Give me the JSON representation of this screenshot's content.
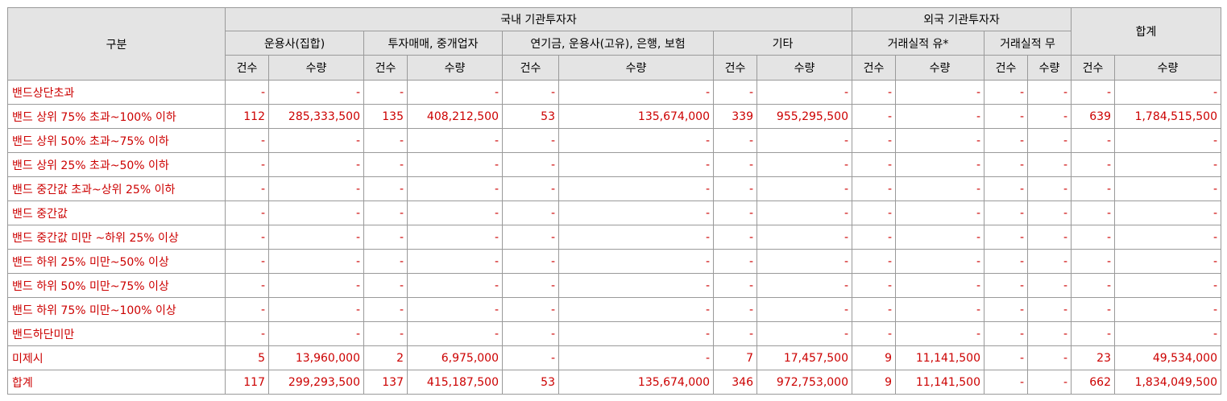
{
  "header": {
    "category": "구분",
    "domestic": "국내 기관투자자",
    "foreign": "외국 기관투자자",
    "total": "합계",
    "groups": {
      "asset_mgmt": "운용사(집합)",
      "broker": "투자매매, 중개업자",
      "pension": "연기금, 운용사(고유), 은행, 보험",
      "other": "기타",
      "with_record": "거래실적 유*",
      "without_record": "거래실적 무"
    },
    "count_label": "건수",
    "qty_label": "수량"
  },
  "rows": [
    {
      "label": "밴드상단초과",
      "cells": [
        "-",
        "-",
        "-",
        "-",
        "-",
        "-",
        "-",
        "-",
        "-",
        "-",
        "-",
        "-",
        "-",
        "-"
      ]
    },
    {
      "label": "밴드 상위 75% 초과~100% 이하",
      "cells": [
        "112",
        "285,333,500",
        "135",
        "408,212,500",
        "53",
        "135,674,000",
        "339",
        "955,295,500",
        "-",
        "-",
        "-",
        "-",
        "639",
        "1,784,515,500"
      ]
    },
    {
      "label": "밴드 상위 50% 초과~75% 이하",
      "cells": [
        "-",
        "-",
        "-",
        "-",
        "-",
        "-",
        "-",
        "-",
        "-",
        "-",
        "-",
        "-",
        "-",
        "-"
      ]
    },
    {
      "label": "밴드 상위 25% 초과~50% 이하",
      "cells": [
        "-",
        "-",
        "-",
        "-",
        "-",
        "-",
        "-",
        "-",
        "-",
        "-",
        "-",
        "-",
        "-",
        "-"
      ]
    },
    {
      "label": "밴드 중간값 초과~상위 25% 이하",
      "cells": [
        "-",
        "-",
        "-",
        "-",
        "-",
        "-",
        "-",
        "-",
        "-",
        "-",
        "-",
        "-",
        "-",
        "-"
      ]
    },
    {
      "label": "밴드 중간값",
      "cells": [
        "-",
        "-",
        "-",
        "-",
        "-",
        "-",
        "-",
        "-",
        "-",
        "-",
        "-",
        "-",
        "-",
        "-"
      ]
    },
    {
      "label": "밴드 중간값 미만 ~하위 25% 이상",
      "cells": [
        "-",
        "-",
        "-",
        "-",
        "-",
        "-",
        "-",
        "-",
        "-",
        "-",
        "-",
        "-",
        "-",
        "-"
      ]
    },
    {
      "label": "밴드 하위 25% 미만~50% 이상",
      "cells": [
        "-",
        "-",
        "-",
        "-",
        "-",
        "-",
        "-",
        "-",
        "-",
        "-",
        "-",
        "-",
        "-",
        "-"
      ]
    },
    {
      "label": "밴드 하위 50% 미만~75% 이상",
      "cells": [
        "-",
        "-",
        "-",
        "-",
        "-",
        "-",
        "-",
        "-",
        "-",
        "-",
        "-",
        "-",
        "-",
        "-"
      ]
    },
    {
      "label": "밴드 하위 75% 미만~100% 이상",
      "cells": [
        "-",
        "-",
        "-",
        "-",
        "-",
        "-",
        "-",
        "-",
        "-",
        "-",
        "-",
        "-",
        "-",
        "-"
      ]
    },
    {
      "label": "밴드하단미만",
      "cells": [
        "-",
        "-",
        "-",
        "-",
        "-",
        "-",
        "-",
        "-",
        "-",
        "-",
        "-",
        "-",
        "-",
        "-"
      ]
    },
    {
      "label": "미제시",
      "cells": [
        "5",
        "13,960,000",
        "2",
        "6,975,000",
        "-",
        "-",
        "7",
        "17,457,500",
        "9",
        "11,141,500",
        "-",
        "-",
        "23",
        "49,534,000"
      ]
    },
    {
      "label": "합계",
      "cells": [
        "117",
        "299,293,500",
        "137",
        "415,187,500",
        "53",
        "135,674,000",
        "346",
        "972,753,000",
        "9",
        "11,141,500",
        "-",
        "-",
        "662",
        "1,834,049,500"
      ]
    }
  ]
}
